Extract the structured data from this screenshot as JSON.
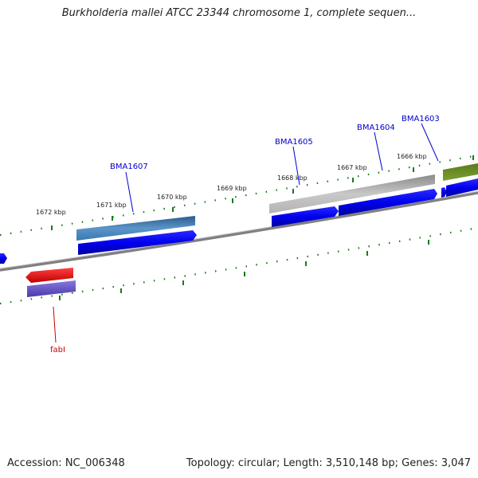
{
  "title": "Burkholderia mallei ATCC 23344 chromosome 1, complete sequen...",
  "footer": {
    "accession": "Accession: NC_006348",
    "summary": "Topology: circular; Length: 3,510,148 bp; Genes: 3,047"
  },
  "ticks": {
    "t1672": "1672 kbp",
    "t1671": "1671 kbp",
    "t1670": "1670 kbp",
    "t1669": "1669 kbp",
    "t1668": "1668 kbp",
    "t1667": "1667 kbp",
    "t1666": "1666 kbp"
  },
  "genes": {
    "bma1607": "BMA1607",
    "bma1605": "BMA1605",
    "bma1604": "BMA1604",
    "bma1603": "BMA1603",
    "fabl": "fabI"
  },
  "colors": {
    "tick": "#1a7a1a",
    "cds": "#0000ee",
    "gene_red": "#ee0000",
    "gene_purple": "#6a5acd",
    "gene_steel": "#4682b4",
    "gene_gray": "#b0b0b0",
    "gene_olive": "#6b8e23",
    "backbone": "#808080"
  }
}
